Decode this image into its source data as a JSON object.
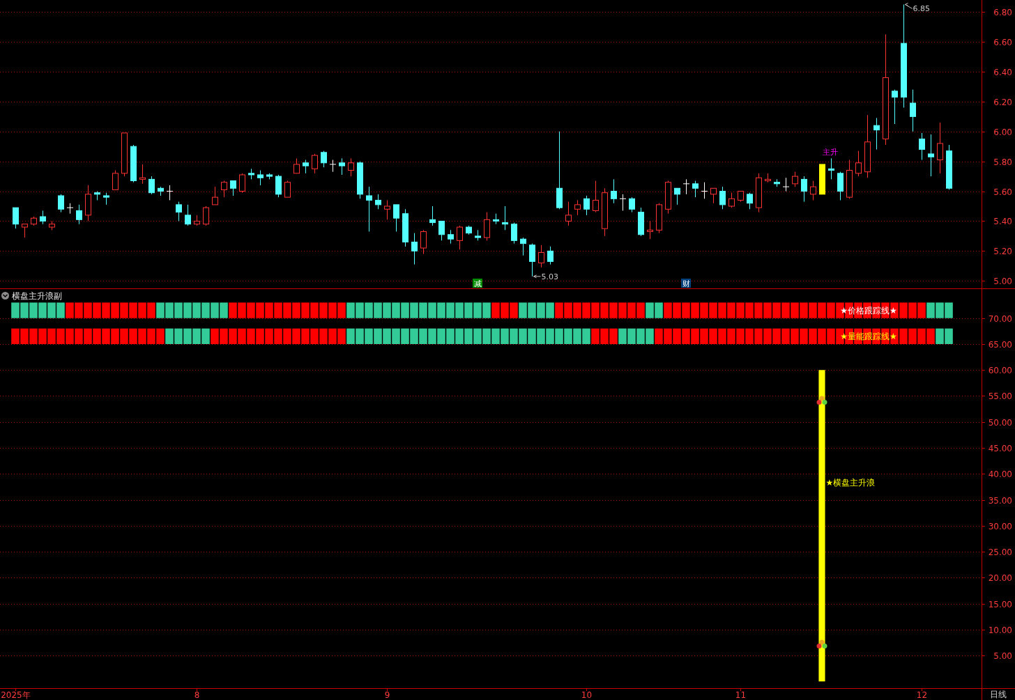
{
  "chart_data": [
    {
      "type": "candlestick",
      "categories": [
        null,
        null,
        null,
        null,
        null,
        null,
        null,
        null,
        null,
        null,
        null,
        null,
        null,
        null,
        null,
        null,
        null,
        null,
        null,
        null,
        null,
        null,
        null,
        null,
        null,
        null,
        null,
        null,
        null,
        null,
        null,
        null,
        null,
        null,
        null,
        null,
        null,
        null,
        null,
        null,
        null,
        null,
        null,
        null,
        null,
        null,
        null,
        null,
        null,
        null,
        null,
        null,
        null,
        null,
        null,
        null,
        null,
        null,
        null,
        null,
        null,
        null,
        null,
        null,
        null,
        null,
        null,
        null,
        null,
        null,
        null,
        null,
        null,
        null,
        null,
        null,
        null,
        null,
        null,
        null,
        null,
        null,
        null,
        null,
        null,
        null,
        null,
        null,
        null,
        null,
        null,
        null,
        null,
        null,
        null,
        null,
        null,
        null,
        null,
        null,
        null,
        null,
        null,
        null
      ],
      "ohlc": [
        [
          5.49,
          5.49,
          5.35,
          5.38
        ],
        [
          5.36,
          5.38,
          5.29,
          5.38
        ],
        [
          5.38,
          5.43,
          5.37,
          5.42
        ],
        [
          5.43,
          5.47,
          5.38,
          5.4
        ],
        [
          5.36,
          5.4,
          5.34,
          5.38
        ],
        [
          5.57,
          5.58,
          5.46,
          5.48
        ],
        [
          5.49,
          5.52,
          5.45,
          5.49
        ],
        [
          5.47,
          5.51,
          5.38,
          5.41
        ],
        [
          5.44,
          5.64,
          5.4,
          5.58
        ],
        [
          5.59,
          5.6,
          5.54,
          5.58
        ],
        [
          5.57,
          5.59,
          5.51,
          5.56
        ],
        [
          5.61,
          5.74,
          5.61,
          5.72
        ],
        [
          5.72,
          5.99,
          5.7,
          5.99
        ],
        [
          5.9,
          5.91,
          5.66,
          5.67
        ],
        [
          5.68,
          5.78,
          5.65,
          5.69
        ],
        [
          5.68,
          5.7,
          5.58,
          5.59
        ],
        [
          5.62,
          5.63,
          5.57,
          5.6
        ],
        [
          5.6,
          5.64,
          5.54,
          5.6
        ],
        [
          5.51,
          5.53,
          5.4,
          5.46
        ],
        [
          5.44,
          5.51,
          5.37,
          5.38
        ],
        [
          5.38,
          5.44,
          5.37,
          5.4
        ],
        [
          5.38,
          5.5,
          5.37,
          5.49
        ],
        [
          5.51,
          5.63,
          5.51,
          5.56
        ],
        [
          5.61,
          5.67,
          5.56,
          5.66
        ],
        [
          5.67,
          5.67,
          5.57,
          5.62
        ],
        [
          5.6,
          5.72,
          5.59,
          5.71
        ],
        [
          5.72,
          5.75,
          5.68,
          5.71
        ],
        [
          5.71,
          5.74,
          5.64,
          5.69
        ],
        [
          5.71,
          5.72,
          5.68,
          5.7
        ],
        [
          5.7,
          5.71,
          5.56,
          5.58
        ],
        [
          5.56,
          5.67,
          5.56,
          5.66
        ],
        [
          5.72,
          5.82,
          5.72,
          5.78
        ],
        [
          5.79,
          5.81,
          5.72,
          5.77
        ],
        [
          5.75,
          5.85,
          5.72,
          5.84
        ],
        [
          5.86,
          5.87,
          5.76,
          5.79
        ],
        [
          5.78,
          5.81,
          5.73,
          5.78
        ],
        [
          5.79,
          5.82,
          5.71,
          5.77
        ],
        [
          5.74,
          5.82,
          5.7,
          5.79
        ],
        [
          5.79,
          5.8,
          5.55,
          5.58
        ],
        [
          5.57,
          5.63,
          5.33,
          5.54
        ],
        [
          5.54,
          5.58,
          5.48,
          5.51
        ],
        [
          5.48,
          5.54,
          5.41,
          5.5
        ],
        [
          5.51,
          5.51,
          5.33,
          5.42
        ],
        [
          5.45,
          5.48,
          5.23,
          5.26
        ],
        [
          5.26,
          5.32,
          5.11,
          5.2
        ],
        [
          5.22,
          5.34,
          5.18,
          5.33
        ],
        [
          5.41,
          5.5,
          5.37,
          5.39
        ],
        [
          5.4,
          5.4,
          5.27,
          5.31
        ],
        [
          5.31,
          5.34,
          5.25,
          5.28
        ],
        [
          5.27,
          5.37,
          5.21,
          5.36
        ],
        [
          5.36,
          5.37,
          5.31,
          5.32
        ],
        [
          5.3,
          5.34,
          5.27,
          5.29
        ],
        [
          5.29,
          5.46,
          5.27,
          5.41
        ],
        [
          5.41,
          5.45,
          5.38,
          5.4
        ],
        [
          5.39,
          5.5,
          5.34,
          5.38
        ],
        [
          5.38,
          5.39,
          5.25,
          5.27
        ],
        [
          5.28,
          5.29,
          5.17,
          5.25
        ],
        [
          5.24,
          5.25,
          5.03,
          5.13
        ],
        [
          5.12,
          5.24,
          5.09,
          5.19
        ],
        [
          5.2,
          5.23,
          5.11,
          5.13
        ],
        [
          5.62,
          6.0,
          5.48,
          5.49
        ],
        [
          5.4,
          5.53,
          5.37,
          5.44
        ],
        [
          5.48,
          5.54,
          5.44,
          5.51
        ],
        [
          5.55,
          5.57,
          5.44,
          5.48
        ],
        [
          5.47,
          5.67,
          5.46,
          5.54
        ],
        [
          5.35,
          5.62,
          5.3,
          5.59
        ],
        [
          5.6,
          5.68,
          5.52,
          5.55
        ],
        [
          5.55,
          5.58,
          5.47,
          5.55
        ],
        [
          5.55,
          5.56,
          5.46,
          5.48
        ],
        [
          5.46,
          5.49,
          5.3,
          5.31
        ],
        [
          5.33,
          5.4,
          5.28,
          5.34
        ],
        [
          5.34,
          5.52,
          5.32,
          5.51
        ],
        [
          5.48,
          5.67,
          5.45,
          5.66
        ],
        [
          5.62,
          5.62,
          5.51,
          5.58
        ],
        [
          5.65,
          5.68,
          5.58,
          5.65
        ],
        [
          5.65,
          5.67,
          5.56,
          5.62
        ],
        [
          5.6,
          5.66,
          5.55,
          5.6
        ],
        [
          5.58,
          5.62,
          5.52,
          5.62
        ],
        [
          5.6,
          5.63,
          5.48,
          5.51
        ],
        [
          5.5,
          5.59,
          5.49,
          5.55
        ],
        [
          5.54,
          5.6,
          5.53,
          5.6
        ],
        [
          5.58,
          5.59,
          5.48,
          5.52
        ],
        [
          5.49,
          5.72,
          5.46,
          5.69
        ],
        [
          5.67,
          5.72,
          5.66,
          5.68
        ],
        [
          5.66,
          5.68,
          5.63,
          5.65
        ],
        [
          5.63,
          5.69,
          5.6,
          5.63
        ],
        [
          5.65,
          5.73,
          5.63,
          5.7
        ],
        [
          5.68,
          5.7,
          5.53,
          5.6
        ],
        [
          5.58,
          5.67,
          5.54,
          5.63
        ],
        [
          5.78,
          5.78,
          5.58,
          5.58
        ],
        [
          5.75,
          5.82,
          5.68,
          5.74
        ],
        [
          5.72,
          5.73,
          5.54,
          5.6
        ],
        [
          5.56,
          5.81,
          5.55,
          5.74
        ],
        [
          5.72,
          5.87,
          5.7,
          5.79
        ],
        [
          5.73,
          6.11,
          5.69,
          5.93
        ],
        [
          6.04,
          6.09,
          5.88,
          6.01
        ],
        [
          5.95,
          6.65,
          5.91,
          6.36
        ],
        [
          6.27,
          6.28,
          6.05,
          6.23
        ],
        [
          6.59,
          6.85,
          6.16,
          6.23
        ],
        [
          6.19,
          6.28,
          6.0,
          6.1
        ],
        [
          5.95,
          5.99,
          5.81,
          5.88
        ],
        [
          5.85,
          5.98,
          5.7,
          5.83
        ],
        [
          5.81,
          6.06,
          5.72,
          5.92
        ],
        [
          5.87,
          5.91,
          5.61,
          5.62
        ]
      ],
      "colors": [
        "#54ffff",
        "#ff3232",
        "#ff3232",
        "#54ffff",
        "#ff3232",
        "#54ffff",
        "#ffffff",
        "#54ffff",
        "#ff3232",
        "#54ffff",
        "#54ffff",
        "#ff3232",
        "#ff3232",
        "#54ffff",
        "#ff3232",
        "#54ffff",
        "#54ffff",
        "#ffffff",
        "#54ffff",
        "#54ffff",
        "#ff3232",
        "#ff3232",
        "#ff3232",
        "#ff3232",
        "#54ffff",
        "#ff3232",
        "#54ffff",
        "#54ffff",
        "#54ffff",
        "#54ffff",
        "#ff3232",
        "#ff3232",
        "#54ffff",
        "#ff3232",
        "#54ffff",
        "#ffffff",
        "#54ffff",
        "#ff3232",
        "#54ffff",
        "#54ffff",
        "#54ffff",
        "#ff3232",
        "#54ffff",
        "#54ffff",
        "#54ffff",
        "#ff3232",
        "#54ffff",
        "#54ffff",
        "#54ffff",
        "#ff3232",
        "#54ffff",
        "#54ffff",
        "#ff3232",
        "#54ffff",
        "#54ffff",
        "#54ffff",
        "#54ffff",
        "#54ffff",
        "#ff3232",
        "#54ffff",
        "#54ffff",
        "#ff3232",
        "#ff3232",
        "#54ffff",
        "#ff3232",
        "#ff3232",
        "#54ffff",
        "#ffffff",
        "#54ffff",
        "#54ffff",
        "#ff3232",
        "#ff3232",
        "#ff3232",
        "#54ffff",
        "#ffffff",
        "#54ffff",
        "#ffffff",
        "#ff3232",
        "#54ffff",
        "#ff3232",
        "#ff3232",
        "#54ffff",
        "#ff3232",
        "#ff3232",
        "#54ffff",
        "#ffffff",
        "#ff3232",
        "#54ffff",
        "#ff3232",
        "#ffff00",
        "#54ffff",
        "#54ffff",
        "#ff3232",
        "#ff3232",
        "#ff3232",
        "#54ffff",
        "#ff3232",
        "#54ffff",
        "#54ffff",
        "#54ffff",
        "#54ffff",
        "#54ffff",
        "#ff3232",
        "#54ffff"
      ],
      "ylim": [
        4.95,
        6.88
      ],
      "yticks": [
        {
          "value": 5,
          "label": "5.00"
        },
        {
          "value": 5.2,
          "label": "5.20"
        },
        {
          "value": 5.4,
          "label": "5.40"
        },
        {
          "value": 5.6,
          "label": "5.60"
        },
        {
          "value": 5.8,
          "label": "5.80"
        },
        {
          "value": 6,
          "label": "6.00"
        },
        {
          "value": 6.2,
          "label": "6.20"
        },
        {
          "value": 6.4,
          "label": "6.40"
        },
        {
          "value": 6.6,
          "label": "6.60"
        },
        {
          "value": 6.8,
          "label": "6.80"
        }
      ],
      "grid": "y",
      "annotations": [
        "6.85",
        "5.03",
        "减",
        "财",
        "主升"
      ]
    },
    {
      "type": "bar",
      "title": "横盘主升浪副",
      "categories": [
        "2025年",
        null,
        null,
        null,
        null,
        null,
        null,
        null,
        null,
        null,
        null,
        null,
        null,
        null,
        null,
        null,
        null,
        null,
        null,
        null,
        "8",
        null,
        null,
        null,
        null,
        null,
        null,
        null,
        null,
        null,
        null,
        null,
        null,
        null,
        null,
        null,
        null,
        null,
        null,
        null,
        null,
        "9",
        null,
        null,
        null,
        null,
        null,
        null,
        null,
        null,
        null,
        null,
        null,
        null,
        null,
        null,
        null,
        null,
        null,
        null,
        null,
        null,
        null,
        "10",
        null,
        null,
        null,
        null,
        null,
        null,
        null,
        null,
        null,
        null,
        null,
        null,
        null,
        null,
        null,
        null,
        "11",
        null,
        null,
        null,
        null,
        null,
        null,
        null,
        null,
        null,
        null,
        null,
        null,
        null,
        null,
        null,
        null,
        null,
        null,
        null,
        "12",
        null,
        null,
        null
      ],
      "series": [
        {
          "name": "★价格跟踪线★",
          "colors": [
            "#33cc99",
            "#33cc99",
            "#33cc99",
            "#33cc99",
            "#33cc99",
            "#33cc99",
            "#ff0000",
            "#ff0000",
            "#ff0000",
            "#ff0000",
            "#ff0000",
            "#ff0000",
            "#ff0000",
            "#ff0000",
            "#ff0000",
            "#ff0000",
            "#33cc99",
            "#33cc99",
            "#33cc99",
            "#33cc99",
            "#33cc99",
            "#33cc99",
            "#33cc99",
            "#33cc99",
            "#ff0000",
            "#ff0000",
            "#ff0000",
            "#ff0000",
            "#ff0000",
            "#ff0000",
            "#ff0000",
            "#ff0000",
            "#ff0000",
            "#ff0000",
            "#ff0000",
            "#ff0000",
            "#ff0000",
            "#33cc99",
            "#33cc99",
            "#33cc99",
            "#33cc99",
            "#33cc99",
            "#33cc99",
            "#33cc99",
            "#33cc99",
            "#33cc99",
            "#33cc99",
            "#33cc99",
            "#33cc99",
            "#33cc99",
            "#33cc99",
            "#33cc99",
            "#33cc99",
            "#ff0000",
            "#ff0000",
            "#ff0000",
            "#33cc99",
            "#33cc99",
            "#33cc99",
            "#33cc99",
            "#ff0000",
            "#ff0000",
            "#ff0000",
            "#ff0000",
            "#ff0000",
            "#ff0000",
            "#ff0000",
            "#ff0000",
            "#ff0000",
            "#ff0000",
            "#33cc99",
            "#33cc99",
            "#ff0000",
            "#ff0000",
            "#ff0000",
            "#ff0000",
            "#ff0000",
            "#ff0000",
            "#ff0000",
            "#ff0000",
            "#ff0000",
            "#ff0000",
            "#ff0000",
            "#ff0000",
            "#ff0000",
            "#ff0000",
            "#ff0000",
            "#ff0000",
            "#ff0000",
            "#ff0000",
            "#ff0000",
            "#ff0000",
            "#ff0000",
            "#ff0000",
            "#ff0000",
            "#ff0000",
            "#ff0000",
            "#ff0000",
            "#ff0000",
            "#ff0000",
            "#ff0000",
            "#33cc99",
            "#33cc99",
            "#33cc99"
          ],
          "base": [
            70,
            70,
            70,
            70,
            70,
            70,
            70,
            70,
            70,
            70,
            70,
            70,
            70,
            70,
            70,
            70,
            70,
            70,
            70,
            70,
            70,
            70,
            70,
            70,
            70,
            70,
            70,
            70,
            70,
            70,
            70,
            70,
            70,
            70,
            70,
            70,
            70,
            70,
            70,
            70,
            70,
            70,
            70,
            70,
            70,
            70,
            70,
            70,
            70,
            70,
            70,
            70,
            70,
            70,
            70,
            70,
            70,
            70,
            70,
            70,
            70,
            70,
            70,
            70,
            70,
            70,
            70,
            70,
            70,
            70,
            70,
            70,
            70,
            70,
            70,
            70,
            70,
            70,
            70,
            70,
            70,
            70,
            70,
            70,
            70,
            70,
            70,
            70,
            70,
            70,
            70,
            70,
            70,
            70,
            70,
            70,
            70,
            70,
            70,
            70,
            70,
            70,
            70,
            70
          ],
          "values": [
            3,
            3,
            3,
            3,
            3,
            3,
            3,
            3,
            3,
            3,
            3,
            3,
            3,
            3,
            3,
            3,
            3,
            3,
            3,
            3,
            3,
            3,
            3,
            3,
            3,
            3,
            3,
            3,
            3,
            3,
            3,
            3,
            3,
            3,
            3,
            3,
            3,
            3,
            3,
            3,
            3,
            3,
            3,
            3,
            3,
            3,
            3,
            3,
            3,
            3,
            3,
            3,
            3,
            3,
            3,
            3,
            3,
            3,
            3,
            3,
            3,
            3,
            3,
            3,
            3,
            3,
            3,
            3,
            3,
            3,
            3,
            3,
            3,
            3,
            3,
            3,
            3,
            3,
            3,
            3,
            3,
            3,
            3,
            3,
            3,
            3,
            3,
            3,
            3,
            3,
            3,
            3,
            3,
            3,
            3,
            3,
            3,
            3,
            3,
            3,
            3,
            3,
            3,
            3
          ]
        },
        {
          "name": "★量能跟踪线★",
          "colors": [
            "#ff0000",
            "#ff0000",
            "#ff0000",
            "#ff0000",
            "#ff0000",
            "#ff0000",
            "#ff0000",
            "#ff0000",
            "#ff0000",
            "#ff0000",
            "#ff0000",
            "#ff0000",
            "#ff0000",
            "#ff0000",
            "#ff0000",
            "#ff0000",
            "#ff0000",
            "#33cc99",
            "#33cc99",
            "#33cc99",
            "#33cc99",
            "#33cc99",
            "#ff0000",
            "#ff0000",
            "#ff0000",
            "#ff0000",
            "#ff0000",
            "#ff0000",
            "#ff0000",
            "#ff0000",
            "#ff0000",
            "#ff0000",
            "#ff0000",
            "#ff0000",
            "#ff0000",
            "#ff0000",
            "#ff0000",
            "#33cc99",
            "#33cc99",
            "#33cc99",
            "#33cc99",
            "#33cc99",
            "#33cc99",
            "#33cc99",
            "#33cc99",
            "#33cc99",
            "#33cc99",
            "#33cc99",
            "#33cc99",
            "#33cc99",
            "#33cc99",
            "#33cc99",
            "#33cc99",
            "#33cc99",
            "#33cc99",
            "#33cc99",
            "#33cc99",
            "#33cc99",
            "#33cc99",
            "#33cc99",
            "#33cc99",
            "#33cc99",
            "#33cc99",
            "#33cc99",
            "#ff0000",
            "#ff0000",
            "#ff0000",
            "#33cc99",
            "#33cc99",
            "#33cc99",
            "#33cc99",
            "#ff0000",
            "#ff0000",
            "#ff0000",
            "#ff0000",
            "#ff0000",
            "#ff0000",
            "#ff0000",
            "#ff0000",
            "#ff0000",
            "#ff0000",
            "#ff0000",
            "#ff0000",
            "#ff0000",
            "#ff0000",
            "#ff0000",
            "#ff0000",
            "#ff0000",
            "#ff0000",
            "#ff0000",
            "#ff0000",
            "#ff0000",
            "#ff0000",
            "#ff0000",
            "#ff0000",
            "#ff0000",
            "#ff0000",
            "#ff0000",
            "#ff0000",
            "#ff0000",
            "#ff0000",
            "#ff0000",
            "#33cc99",
            "#33cc99"
          ],
          "base": [
            65,
            65,
            65,
            65,
            65,
            65,
            65,
            65,
            65,
            65,
            65,
            65,
            65,
            65,
            65,
            65,
            65,
            65,
            65,
            65,
            65,
            65,
            65,
            65,
            65,
            65,
            65,
            65,
            65,
            65,
            65,
            65,
            65,
            65,
            65,
            65,
            65,
            65,
            65,
            65,
            65,
            65,
            65,
            65,
            65,
            65,
            65,
            65,
            65,
            65,
            65,
            65,
            65,
            65,
            65,
            65,
            65,
            65,
            65,
            65,
            65,
            65,
            65,
            65,
            65,
            65,
            65,
            65,
            65,
            65,
            65,
            65,
            65,
            65,
            65,
            65,
            65,
            65,
            65,
            65,
            65,
            65,
            65,
            65,
            65,
            65,
            65,
            65,
            65,
            65,
            65,
            65,
            65,
            65,
            65,
            65,
            65,
            65,
            65,
            65,
            65,
            65,
            65,
            65
          ],
          "values": [
            3,
            3,
            3,
            3,
            3,
            3,
            3,
            3,
            3,
            3,
            3,
            3,
            3,
            3,
            3,
            3,
            3,
            3,
            3,
            3,
            3,
            3,
            3,
            3,
            3,
            3,
            3,
            3,
            3,
            3,
            3,
            3,
            3,
            3,
            3,
            3,
            3,
            3,
            3,
            3,
            3,
            3,
            3,
            3,
            3,
            3,
            3,
            3,
            3,
            3,
            3,
            3,
            3,
            3,
            3,
            3,
            3,
            3,
            3,
            3,
            3,
            3,
            3,
            3,
            3,
            3,
            3,
            3,
            3,
            3,
            3,
            3,
            3,
            3,
            3,
            3,
            3,
            3,
            3,
            3,
            3,
            3,
            3,
            3,
            3,
            3,
            3,
            3,
            3,
            3,
            3,
            3,
            3,
            3,
            3,
            3,
            3,
            3,
            3,
            3,
            3,
            3,
            3,
            3
          ]
        },
        {
          "name": "★横盘主升浪",
          "color": "#ffff00",
          "base": [
            null,
            null,
            null,
            null,
            null,
            null,
            null,
            null,
            null,
            null,
            null,
            null,
            null,
            null,
            null,
            null,
            null,
            null,
            null,
            null,
            null,
            null,
            null,
            null,
            null,
            null,
            null,
            null,
            null,
            null,
            null,
            null,
            null,
            null,
            null,
            null,
            null,
            null,
            null,
            null,
            null,
            null,
            null,
            null,
            null,
            null,
            null,
            null,
            null,
            null,
            null,
            null,
            null,
            null,
            null,
            null,
            null,
            null,
            null,
            null,
            null,
            null,
            null,
            null,
            null,
            null,
            null,
            null,
            null,
            null,
            null,
            null,
            null,
            null,
            null,
            null,
            null,
            null,
            null,
            null,
            null,
            null,
            null,
            null,
            null,
            null,
            null,
            null,
            null,
            0,
            null,
            null,
            null,
            null,
            null,
            null,
            null,
            null,
            null,
            null,
            null,
            null,
            null,
            null
          ],
          "values": [
            null,
            null,
            null,
            null,
            null,
            null,
            null,
            null,
            null,
            null,
            null,
            null,
            null,
            null,
            null,
            null,
            null,
            null,
            null,
            null,
            null,
            null,
            null,
            null,
            null,
            null,
            null,
            null,
            null,
            null,
            null,
            null,
            null,
            null,
            null,
            null,
            null,
            null,
            null,
            null,
            null,
            null,
            null,
            null,
            null,
            null,
            null,
            null,
            null,
            null,
            null,
            null,
            null,
            null,
            null,
            null,
            null,
            null,
            null,
            null,
            null,
            null,
            null,
            null,
            null,
            null,
            null,
            null,
            null,
            null,
            null,
            null,
            null,
            null,
            null,
            null,
            null,
            null,
            null,
            null,
            null,
            null,
            null,
            null,
            null,
            null,
            null,
            null,
            null,
            60,
            null,
            null,
            null,
            null,
            null,
            null,
            null,
            null,
            null,
            null,
            null,
            null,
            null,
            null
          ]
        }
      ],
      "ylim": [
        -1.3,
        75.6
      ],
      "yticks": [
        {
          "value": 5,
          "label": "5.00"
        },
        {
          "value": 10,
          "label": "10.00"
        },
        {
          "value": 15,
          "label": "15.00"
        },
        {
          "value": 20,
          "label": "20.00"
        },
        {
          "value": 25,
          "label": "25.00"
        },
        {
          "value": 30,
          "label": "30.00"
        },
        {
          "value": 35,
          "label": "35.00"
        },
        {
          "value": 40,
          "label": "40.00"
        },
        {
          "value": 45,
          "label": "45.00"
        },
        {
          "value": 50,
          "label": "50.00"
        },
        {
          "value": 55,
          "label": "55.00"
        },
        {
          "value": 60,
          "label": "60.00"
        },
        {
          "value": 65,
          "label": "65.00"
        },
        {
          "value": 70,
          "label": "70.00"
        }
      ],
      "grid": "y",
      "annotations": [
        "日线"
      ]
    }
  ]
}
